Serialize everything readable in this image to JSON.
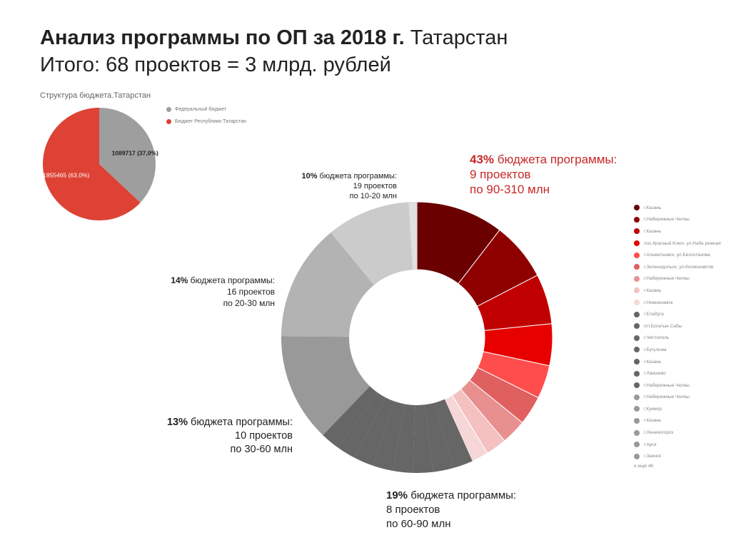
{
  "header": {
    "title_bold": "Анализ программы по ОП за 2018 г.",
    "title_rest": " Татарстан",
    "subtitle": "Итого: 68 проектов = 3 млрд. рублей"
  },
  "chart_data": [
    {
      "type": "pie",
      "title": "Структура бюджета.Татарстан",
      "legend_position": "right",
      "slices": [
        {
          "name": "Федеральный бюджет",
          "value": 1089717,
          "label": "1089717 (37,0%)",
          "color": "#9e9e9e"
        },
        {
          "name": "Бюджет Республики Татарстан",
          "value": 1855465,
          "label": "1855465 (63,0%)",
          "color": "#dd4235"
        }
      ]
    },
    {
      "type": "pie",
      "subtype": "donut",
      "groups": [
        {
          "pct_label": "43%",
          "text": " бюджета программы:",
          "line2": "9 проектов",
          "line3": "по 90-310 млн",
          "color": "#c62828",
          "slices": [
            10.5,
            7,
            6,
            5,
            4,
            3.5,
            3,
            2.5,
            2
          ],
          "colors": [
            "#6b0000",
            "#8e0000",
            "#c00000",
            "#e60000",
            "#ff4d4d",
            "#e06060",
            "#e89090",
            "#f4c0c0",
            "#f6d6d6"
          ]
        },
        {
          "pct_label": "19%",
          "text": " бюджета программы:",
          "line2": "8 проектов",
          "line3": "по 60-90 млн",
          "color": "#222",
          "slices": [
            2.4,
            2.4,
            2.4,
            2.4,
            2.4,
            2.4,
            2.3,
            2.3
          ],
          "colors": [
            "#666666"
          ]
        },
        {
          "pct_label": "13%",
          "text": " бюджета программы:",
          "line2": "10 проектов",
          "line3": "по 30-60 млн",
          "color": "#222",
          "slices": [
            1.3,
            1.3,
            1.3,
            1.3,
            1.3,
            1.3,
            1.3,
            1.3,
            1.3,
            1.3
          ],
          "colors": [
            "#999999"
          ]
        },
        {
          "pct_label": "14%",
          "text": " бюджета программы:",
          "line2": "16 проектов",
          "line3": "по 20-30 млн",
          "color": "#222",
          "slices": [
            0.875,
            0.875,
            0.875,
            0.875,
            0.875,
            0.875,
            0.875,
            0.875,
            0.875,
            0.875,
            0.875,
            0.875,
            0.875,
            0.875,
            0.875,
            0.875
          ],
          "colors": [
            "#b3b3b3"
          ]
        },
        {
          "pct_label": "10%",
          "text": " бюджета программы:",
          "line2": "19 проектов",
          "line3": "по 10-20 млн",
          "color": "#222",
          "slices": [
            0.53,
            0.53,
            0.53,
            0.53,
            0.53,
            0.53,
            0.53,
            0.53,
            0.53,
            0.53,
            0.53,
            0.53,
            0.53,
            0.53,
            0.53,
            0.53,
            0.53,
            0.53,
            0.46
          ],
          "colors": [
            "#cccccc"
          ]
        },
        {
          "pct_label": "",
          "text": "",
          "line2": "",
          "line3": "",
          "color": "#222",
          "slices": [
            1
          ],
          "colors": [
            "#e0e0e0"
          ]
        }
      ],
      "legend": [
        {
          "name": "г.Казань",
          "color": "#6b0000"
        },
        {
          "name": "г.Набережные Челны",
          "color": "#8e0000"
        },
        {
          "name": "г.Казань",
          "color": "#c00000"
        },
        {
          "name": "пос.Красный Ключ, ул.Набе режная",
          "color": "#e60000"
        },
        {
          "name": "г.Альметьевск, ул.Белоглазова",
          "color": "#ff4d4d"
        },
        {
          "name": "г.Зеленодольск, ул.Космонавтов",
          "color": "#e06060"
        },
        {
          "name": "г.Набережные Челны",
          "color": "#e89090"
        },
        {
          "name": "г.Казань",
          "color": "#f4c0c0"
        },
        {
          "name": "г.Нижнекамск",
          "color": "#f6d6d6"
        },
        {
          "name": "г.Елабуга",
          "color": "#666666"
        },
        {
          "name": "пгт.Богатые Сабы",
          "color": "#666666"
        },
        {
          "name": "г.Чистополь",
          "color": "#666666"
        },
        {
          "name": "г.Бугульма",
          "color": "#666666"
        },
        {
          "name": "г.Казань",
          "color": "#666666"
        },
        {
          "name": "г.Лаишево",
          "color": "#666666"
        },
        {
          "name": "г.Набережные Челны",
          "color": "#666666"
        },
        {
          "name": "г.Набережные Челны",
          "color": "#999999"
        },
        {
          "name": "г.Кукмор",
          "color": "#999999"
        },
        {
          "name": "г.Казань",
          "color": "#999999"
        },
        {
          "name": "г.Лениногорск",
          "color": "#999999"
        },
        {
          "name": "г.Арск",
          "color": "#999999"
        },
        {
          "name": "г.Заинск",
          "color": "#999999"
        }
      ],
      "legend_more": "и ещё 46"
    }
  ]
}
